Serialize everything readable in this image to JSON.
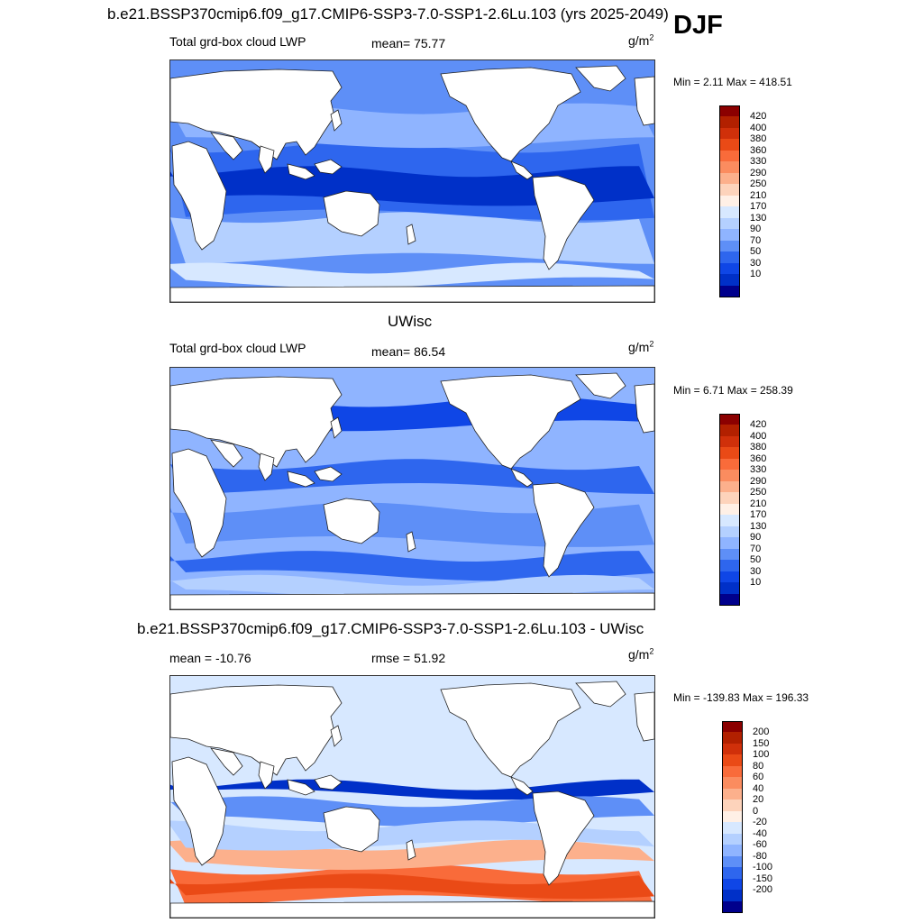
{
  "page_title": "b.e21.BSSP370cmip6.f09_g17.CMIP6-SSP3-7.0-SSP1-2.6Lu.103 (yrs 2025-2049)",
  "season": "DJF",
  "panels": [
    {
      "left_label": "Total grd-box cloud LWP",
      "stat_label": "mean=  75.77",
      "units": "g/m",
      "units_sup": "2",
      "minmax": "Min =   2.11 Max = 418.51"
    },
    {
      "title": "UWisc",
      "left_label": "Total grd-box cloud LWP",
      "stat_label": "mean=  86.54",
      "units": "g/m",
      "units_sup": "2",
      "minmax": "Min =   6.71 Max = 258.39"
    },
    {
      "title": "b.e21.BSSP370cmip6.f09_g17.CMIP6-SSP3-7.0-SSP1-2.6Lu.103 - UWisc",
      "left_label": "mean = -10.76",
      "stat_label": "rmse =  51.92",
      "units": "g/m",
      "units_sup": "2",
      "minmax": "Min = -139.83 Max = 196.33"
    }
  ],
  "colorbars": {
    "lwp": {
      "labels": [
        "420",
        "400",
        "380",
        "360",
        "330",
        "290",
        "250",
        "210",
        "170",
        "130",
        "90",
        "70",
        "50",
        "30",
        "10"
      ],
      "colors": [
        "#8b0000",
        "#b22000",
        "#d0300a",
        "#ea4a16",
        "#f96b3a",
        "#fb8c5f",
        "#fcb08c",
        "#fdd3bb",
        "#fff0e6",
        "#d7e8ff",
        "#b4d0ff",
        "#8fb4ff",
        "#5e8ff7",
        "#2e66ee",
        "#0f46e6",
        "#0030c8",
        "#00008c"
      ]
    },
    "diff": {
      "labels": [
        "200",
        "150",
        "100",
        "80",
        "60",
        "40",
        "20",
        "0",
        "-20",
        "-40",
        "-60",
        "-80",
        "-100",
        "-150",
        "-200"
      ],
      "colors": [
        "#8b0000",
        "#b22000",
        "#d0300a",
        "#ea4a16",
        "#f96b3a",
        "#fb8c5f",
        "#fcb08c",
        "#fdd3bb",
        "#fff0e6",
        "#d7e8ff",
        "#b4d0ff",
        "#8fb4ff",
        "#5e8ff7",
        "#2e66ee",
        "#0f46e6",
        "#0030c8",
        "#00008c"
      ]
    }
  },
  "map_fields": {
    "panel1": {
      "base": "#5e8ff7",
      "bands": [
        [
          "#b4d0ff",
          0.65,
          0.82
        ],
        [
          "#2e66ee",
          0.36,
          0.64
        ],
        [
          "#0030c8",
          0.46,
          0.58
        ],
        [
          "#8fb4ff",
          0.2,
          0.34
        ],
        [
          "#d7e8ff",
          0.86,
          0.92
        ]
      ]
    },
    "panel2": {
      "base": "#8fb4ff",
      "bands": [
        [
          "#2e66ee",
          0.4,
          0.5
        ],
        [
          "#5e8ff7",
          0.58,
          0.72
        ],
        [
          "#2e66ee",
          0.78,
          0.86
        ],
        [
          "#b4d0ff",
          0.88,
          0.94
        ],
        [
          "#0f46e6",
          0.14,
          0.24
        ]
      ]
    },
    "panel3": {
      "base": "#d7e8ff",
      "bands": [
        [
          "#f96b3a",
          0.8,
          0.93
        ],
        [
          "#ea4a16",
          0.84,
          0.9
        ],
        [
          "#0030c8",
          0.45,
          0.49
        ],
        [
          "#5e8ff7",
          0.52,
          0.6
        ],
        [
          "#fcb08c",
          0.7,
          0.78
        ],
        [
          "#b4d0ff",
          0.62,
          0.7
        ]
      ]
    }
  }
}
